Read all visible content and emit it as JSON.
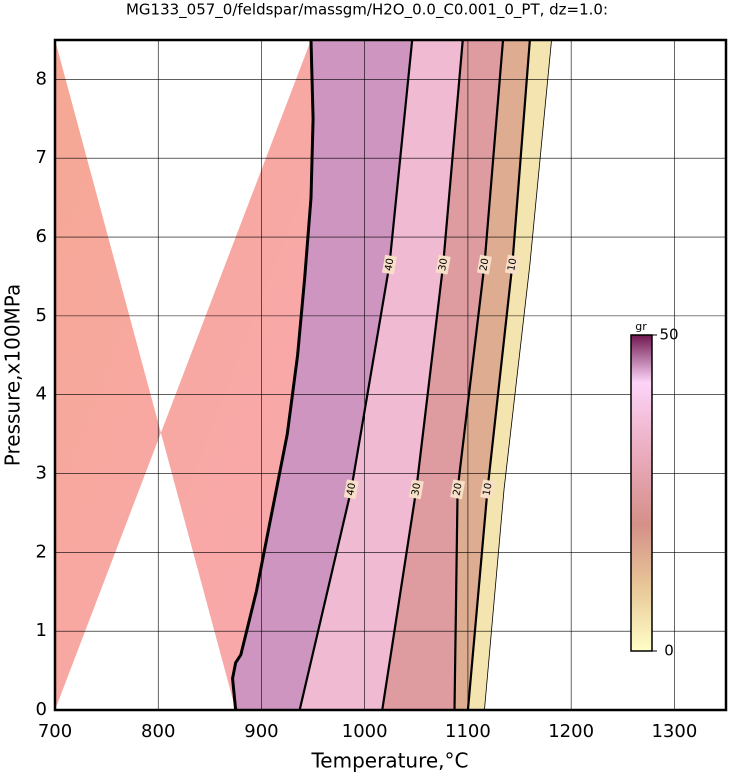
{
  "chart_data": {
    "type": "contour",
    "title": "MG133_057_0/feldspar/massgm/H2O_0.0_C0.001_0_PT, dz=1.0:",
    "x_label": "Temperature,°C",
    "y_label": "Pressure,x100MPa",
    "xlim": [
      700,
      1350
    ],
    "ylim": [
      0,
      8.5
    ],
    "xticks": [
      700,
      800,
      900,
      1000,
      1100,
      1200,
      1300
    ],
    "yticks": [
      0,
      1,
      2,
      3,
      4,
      5,
      6,
      7,
      8
    ],
    "grid": true,
    "boundary": {
      "x": [
        875,
        872,
        875,
        880,
        895,
        910,
        925,
        935,
        942,
        948,
        950,
        948
      ],
      "y": [
        0,
        0.4,
        0.6,
        0.7,
        1.5,
        2.5,
        3.5,
        4.5,
        5.5,
        6.5,
        7.5,
        8.5
      ]
    },
    "contours": [
      {
        "level": 40,
        "x": [
          937,
          987,
          1024,
          1046
        ],
        "y": [
          0,
          2.8,
          5.65,
          8.5
        ]
      },
      {
        "level": 30,
        "x": [
          1017,
          1050,
          1076,
          1095
        ],
        "y": [
          0,
          2.8,
          5.65,
          8.5
        ]
      },
      {
        "level": 20,
        "x": [
          1087,
          1090,
          1116,
          1134
        ],
        "y": [
          0,
          2.8,
          5.65,
          8.5
        ]
      },
      {
        "level": 10,
        "x": [
          1100,
          1119,
          1143,
          1160
        ],
        "y": [
          0,
          2.8,
          5.65,
          8.5
        ]
      }
    ],
    "edge": {
      "x": [
        1116,
        1135,
        1160,
        1181
      ],
      "y": [
        0,
        2.8,
        5.65,
        8.5
      ]
    },
    "colorbar": {
      "label": "gr",
      "lim": [
        0,
        50
      ],
      "ticks": [
        0,
        50
      ]
    }
  }
}
